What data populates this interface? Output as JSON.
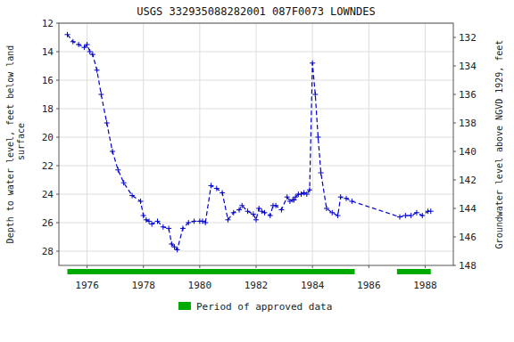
{
  "chart_data": {
    "type": "line",
    "title": "USGS 332935088282001 087F0073  LOWNDES",
    "y_label": "Depth to water level, feet below land\n surface",
    "y2_label": "Groundwater level above NGVD 1929, feet",
    "xlim": [
      1975.0,
      1989.0
    ],
    "xticks": [
      1976,
      1978,
      1980,
      1982,
      1984,
      1986,
      1988
    ],
    "ylim": [
      29,
      12
    ],
    "yticks": [
      12,
      14,
      16,
      18,
      20,
      22,
      24,
      26,
      28
    ],
    "y2lim": [
      148,
      131
    ],
    "y2ticks": [
      132,
      134,
      136,
      138,
      140,
      142,
      144,
      146,
      148
    ],
    "grid": true,
    "legend": "bottom",
    "x": [
      1975.3,
      1975.5,
      1975.7,
      1975.9,
      1976.0,
      1976.1,
      1976.2,
      1976.35,
      1976.5,
      1976.7,
      1976.9,
      1977.1,
      1977.3,
      1977.6,
      1977.9,
      1978.0,
      1978.1,
      1978.2,
      1978.3,
      1978.5,
      1978.7,
      1978.9,
      1979.0,
      1979.1,
      1979.2,
      1979.4,
      1979.6,
      1979.8,
      1980.0,
      1980.1,
      1980.2,
      1980.4,
      1980.6,
      1980.8,
      1981.0,
      1981.2,
      1981.4,
      1981.5,
      1981.7,
      1981.9,
      1982.0,
      1982.1,
      1982.2,
      1982.3,
      1982.5,
      1982.6,
      1982.7,
      1982.9,
      1983.1,
      1983.2,
      1983.3,
      1983.35,
      1983.4,
      1983.5,
      1983.6,
      1983.7,
      1983.8,
      1983.9,
      1984.0,
      1984.1,
      1984.2,
      1984.3,
      1984.5,
      1984.7,
      1984.9,
      1985.0,
      1985.2,
      1985.4,
      1987.1,
      1987.3,
      1987.5,
      1987.7,
      1987.9,
      1988.1,
      1988.2
    ],
    "series": [
      {
        "type": "line",
        "color": "#0000cc",
        "line_style": "dashed",
        "marker": "plus",
        "values": [
          12.8,
          13.3,
          13.5,
          13.7,
          13.5,
          14.0,
          14.2,
          15.3,
          17.0,
          19.0,
          21.0,
          22.3,
          23.2,
          24.1,
          24.5,
          25.5,
          25.8,
          25.9,
          26.1,
          25.9,
          26.3,
          26.4,
          27.5,
          27.7,
          27.9,
          26.4,
          26.0,
          25.9,
          25.9,
          25.9,
          26.0,
          23.4,
          23.6,
          23.9,
          25.8,
          25.3,
          25.1,
          24.8,
          25.2,
          25.4,
          25.8,
          25.0,
          25.2,
          25.3,
          25.5,
          24.8,
          24.8,
          25.1,
          24.2,
          24.5,
          24.4,
          24.4,
          24.2,
          24.0,
          24.0,
          23.9,
          24.0,
          23.7,
          14.8,
          17.0,
          20.0,
          22.5,
          25.0,
          25.3,
          25.5,
          24.2,
          24.3,
          24.5,
          25.6,
          25.5,
          25.5,
          25.3,
          25.5,
          25.2,
          25.2
        ]
      },
      {
        "type": "range_bar",
        "name": "Period of approved data",
        "color": "#00aa00",
        "ranges": [
          [
            1975.3,
            1985.5
          ],
          [
            1987.0,
            1988.2
          ]
        ]
      }
    ]
  }
}
